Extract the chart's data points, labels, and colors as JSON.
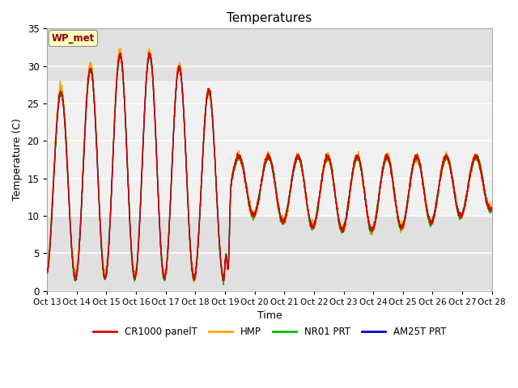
{
  "title": "Temperatures",
  "xlabel": "Time",
  "ylabel": "Temperature (C)",
  "ylim": [
    0,
    35
  ],
  "background_color": "#ffffff",
  "plot_bg_color": "#e0e0e0",
  "grid_color": "#ffffff",
  "annotation_text": "WP_met",
  "annotation_bg": "#ffffc0",
  "annotation_fg": "#8b0000",
  "xtick_labels": [
    "Oct 13",
    "Oct 14",
    "Oct 15",
    "Oct 16",
    "Oct 17",
    "Oct 18",
    "Oct 19",
    "Oct 20",
    "Oct 21",
    "Oct 22",
    "Oct 23",
    "Oct 24",
    "Oct 25",
    "Oct 26",
    "Oct 27",
    "Oct 28"
  ],
  "yticks": [
    0,
    5,
    10,
    15,
    20,
    25,
    30,
    35
  ],
  "shaded_band": [
    10,
    28
  ],
  "series": {
    "CR1000 panelT": {
      "color": "#dd0000",
      "lw": 1.0
    },
    "HMP": {
      "color": "#ffa500",
      "lw": 1.0
    },
    "NR01 PRT": {
      "color": "#00bb00",
      "lw": 1.0
    },
    "AM25T PRT": {
      "color": "#0000cc",
      "lw": 1.0
    }
  }
}
